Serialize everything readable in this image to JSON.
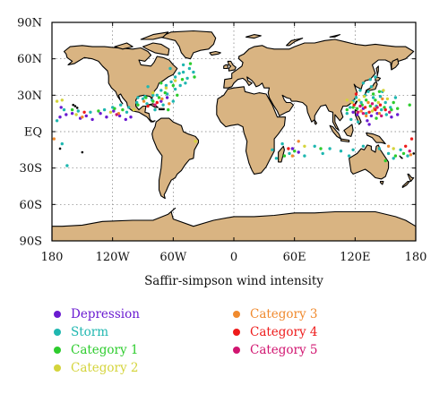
{
  "chart_data": {
    "type": "scatter",
    "title": "",
    "xlabel": "Saffir-simpson wind intensity",
    "ylabel": "",
    "xlim": [
      -180,
      180
    ],
    "ylim": [
      -90,
      90
    ],
    "x_ticks": [
      "180",
      "120W",
      "60W",
      "0",
      "60E",
      "120E",
      "180"
    ],
    "y_ticks": [
      "90N",
      "60N",
      "30N",
      "EQ",
      "30S",
      "60S",
      "90S"
    ],
    "grid": "dotted",
    "land_color": "#d9b482",
    "ocean_color": "#ffffff",
    "legend_position": "bottom",
    "series": [
      {
        "name": "Depression",
        "color": "#6a1bd1",
        "points": [
          [
            -172,
            12
          ],
          [
            -166,
            14
          ],
          [
            -160,
            15
          ],
          [
            -152,
            11
          ],
          [
            -146,
            13
          ],
          [
            -140,
            10
          ],
          [
            -132,
            15
          ],
          [
            -126,
            12
          ],
          [
            -119,
            17
          ],
          [
            -113,
            13
          ],
          [
            -107,
            10
          ],
          [
            -102,
            12
          ],
          [
            -72,
            25
          ],
          [
            -66,
            28
          ],
          [
            118,
            16
          ],
          [
            122,
            14
          ],
          [
            128,
            19
          ],
          [
            132,
            9
          ],
          [
            136,
            13
          ],
          [
            142,
            15
          ],
          [
            134,
            6
          ],
          [
            156,
            12
          ],
          [
            162,
            14
          ],
          [
            58,
            -14
          ],
          [
            64,
            -17
          ],
          [
            -171,
            20
          ]
        ]
      },
      {
        "name": "Storm",
        "color": "#1fb7b0",
        "points": [
          [
            -175,
            9
          ],
          [
            -168,
            18
          ],
          [
            -154,
            17
          ],
          [
            -142,
            16
          ],
          [
            -128,
            18
          ],
          [
            -120,
            20
          ],
          [
            -112,
            22
          ],
          [
            -106,
            16
          ],
          [
            -104,
            20
          ],
          [
            -96,
            24
          ],
          [
            -90,
            27
          ],
          [
            -86,
            23
          ],
          [
            -81,
            26
          ],
          [
            -76,
            30
          ],
          [
            -72,
            34
          ],
          [
            -67,
            38
          ],
          [
            -62,
            41
          ],
          [
            -58,
            45
          ],
          [
            -54,
            48
          ],
          [
            -50,
            49
          ],
          [
            -66,
            31
          ],
          [
            -58,
            35
          ],
          [
            -53,
            38
          ],
          [
            -46,
            44
          ],
          [
            -60,
            25
          ],
          [
            -70,
            22
          ],
          [
            -80,
            30
          ],
          [
            -88,
            29
          ],
          [
            -63,
            52
          ],
          [
            -78,
            18
          ],
          [
            -50,
            55
          ],
          [
            -44,
            52
          ],
          [
            -40,
            49
          ],
          [
            -48,
            40
          ],
          [
            -85,
            37
          ],
          [
            -95,
            28
          ],
          [
            115,
            20
          ],
          [
            118,
            25
          ],
          [
            121,
            28
          ],
          [
            126,
            24
          ],
          [
            130,
            30
          ],
          [
            133,
            33
          ],
          [
            136,
            37
          ],
          [
            138,
            28
          ],
          [
            141,
            21
          ],
          [
            146,
            18
          ],
          [
            150,
            24
          ],
          [
            145,
            29
          ],
          [
            125,
            34
          ],
          [
            128,
            40
          ],
          [
            112,
            15
          ],
          [
            116,
            10
          ],
          [
            123,
            8
          ],
          [
            131,
            15
          ],
          [
            151,
            14
          ],
          [
            155,
            20
          ],
          [
            160,
            28
          ],
          [
            135,
            43
          ],
          [
            140,
            45
          ],
          [
            147,
            33
          ],
          [
            38,
            -15
          ],
          [
            42,
            -22
          ],
          [
            48,
            -10
          ],
          [
            55,
            -18
          ],
          [
            70,
            -20
          ],
          [
            80,
            -12
          ],
          [
            88,
            -18
          ],
          [
            95,
            -14
          ],
          [
            106,
            -16
          ],
          [
            114,
            -20
          ],
          [
            118,
            -15
          ],
          [
            153,
            -18
          ],
          [
            158,
            -22
          ],
          [
            165,
            -15
          ],
          [
            172,
            -20
          ],
          [
            144,
            -14
          ],
          [
            -170,
            -10
          ],
          [
            -165,
            -28
          ],
          [
            128,
            -12
          ]
        ]
      },
      {
        "name": "Category 1",
        "color": "#2dcc2d",
        "points": [
          [
            -160,
            18
          ],
          [
            -134,
            17
          ],
          [
            -118,
            19
          ],
          [
            -110,
            18
          ],
          [
            -95,
            22
          ],
          [
            -87,
            28
          ],
          [
            -74,
            28
          ],
          [
            -68,
            32
          ],
          [
            -56,
            30
          ],
          [
            -60,
            38
          ],
          [
            -51,
            43
          ],
          [
            -72,
            40
          ],
          [
            -80,
            25
          ],
          [
            -43,
            56
          ],
          [
            -39,
            45
          ],
          [
            -65,
            18
          ],
          [
            122,
            19
          ],
          [
            127,
            22
          ],
          [
            131,
            26
          ],
          [
            135,
            21
          ],
          [
            140,
            26
          ],
          [
            144,
            33
          ],
          [
            149,
            20
          ],
          [
            156,
            18
          ],
          [
            158,
            24
          ],
          [
            118,
            20
          ],
          [
            138,
            31
          ],
          [
            162,
            19
          ],
          [
            141,
            11
          ],
          [
            112,
            18
          ],
          [
            60,
            -16
          ],
          [
            50,
            -20
          ],
          [
            86,
            -14
          ],
          [
            160,
            -20
          ],
          [
            150,
            -24
          ],
          [
            168,
            -18
          ],
          [
            174,
            22
          ]
        ]
      },
      {
        "name": "Category 2",
        "color": "#d4d43b",
        "points": [
          [
            -156,
            14
          ],
          [
            -122,
            16
          ],
          [
            -99,
            18
          ],
          [
            -80,
            32
          ],
          [
            -67,
            36
          ],
          [
            -58,
            42
          ],
          [
            124,
            26
          ],
          [
            129,
            29
          ],
          [
            137,
            17
          ],
          [
            143,
            24
          ],
          [
            152,
            27
          ],
          [
            148,
            34
          ],
          [
            117,
            24
          ],
          [
            112,
            26
          ],
          [
            70,
            -12
          ],
          [
            158,
            -14
          ],
          [
            -175,
            25
          ],
          [
            -38,
            -8
          ],
          [
            -170,
            26
          ]
        ]
      },
      {
        "name": "Category 3",
        "color": "#f08a2e",
        "points": [
          [
            -150,
            12
          ],
          [
            -114,
            15
          ],
          [
            -89,
            25
          ],
          [
            -71,
            27
          ],
          [
            -64,
            23
          ],
          [
            126,
            17
          ],
          [
            133,
            24
          ],
          [
            139,
            19
          ],
          [
            144,
            15
          ],
          [
            147,
            27
          ],
          [
            131,
            13
          ],
          [
            64,
            -8
          ],
          [
            58,
            -20
          ],
          [
            175,
            -19
          ],
          [
            -178,
            -6
          ],
          [
            153,
            -12
          ]
        ]
      },
      {
        "name": "Category 4",
        "color": "#ee1b1b",
        "points": [
          [
            -148,
            16
          ],
          [
            -85,
            21
          ],
          [
            -76,
            24
          ],
          [
            119,
            22
          ],
          [
            130,
            20
          ],
          [
            134,
            16
          ],
          [
            140,
            18
          ],
          [
            145,
            22
          ],
          [
            150,
            18
          ],
          [
            121,
            31
          ],
          [
            176,
            -6
          ],
          [
            170,
            -12
          ],
          [
            54,
            -14
          ]
        ]
      },
      {
        "name": "Category 5",
        "color": "#d11570",
        "points": [
          [
            -116,
            14
          ],
          [
            -78,
            22
          ],
          [
            123,
            16
          ],
          [
            128,
            15
          ],
          [
            137,
            23
          ],
          [
            142,
            20
          ],
          [
            146,
            13
          ],
          [
            154,
            16
          ],
          [
            125,
            21
          ],
          [
            174,
            -16
          ]
        ]
      }
    ]
  }
}
